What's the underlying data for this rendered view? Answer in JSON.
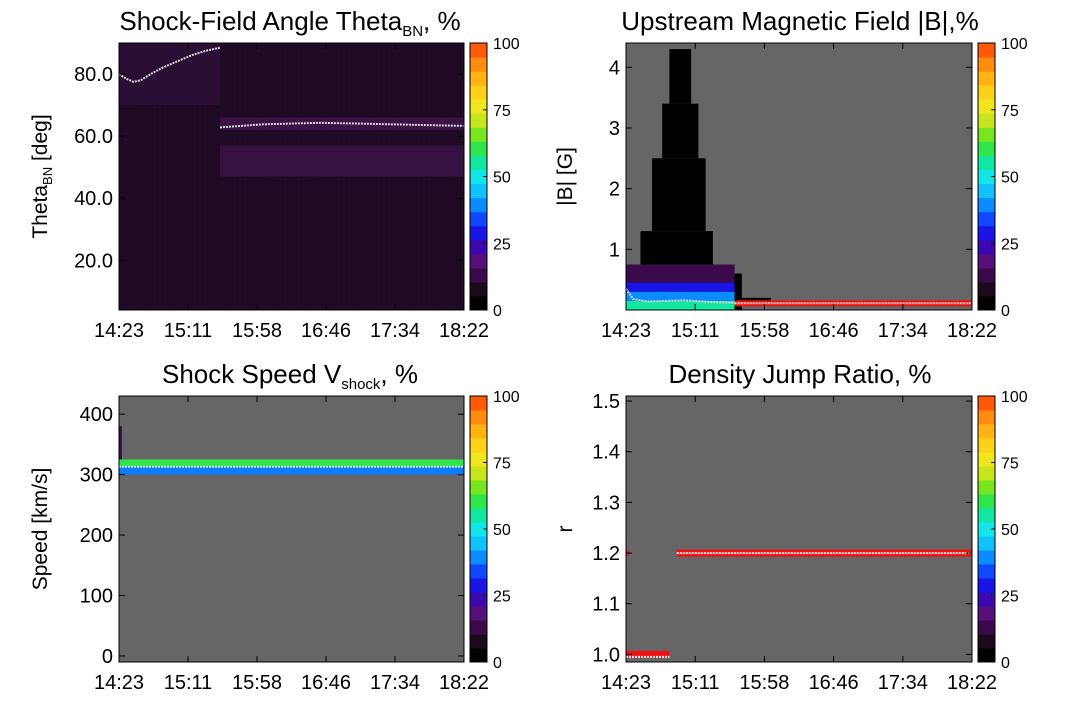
{
  "figure": {
    "colorbar_ticks": [
      "0",
      "25",
      "50",
      "75",
      "100"
    ],
    "colorbar_colors": [
      "#000000",
      "#1c0a1c",
      "#3a0a4a",
      "#55107a",
      "#3a0ab0",
      "#1a14e6",
      "#1048ff",
      "#0a8cff",
      "#12c2ff",
      "#12e6e6",
      "#12e6a0",
      "#2ee64a",
      "#78e61e",
      "#c8e61e",
      "#f0e61e",
      "#ffd21a",
      "#ffb414",
      "#ff8c10",
      "#ff5a0a"
    ],
    "background_color": "#666666",
    "time_ticks": [
      "14:23",
      "15:11",
      "15:58",
      "16:46",
      "17:34",
      "18:22"
    ]
  },
  "chart_data": [
    {
      "type": "heatmap",
      "title_main": "Shock-Field Angle Theta",
      "title_sub": "BN",
      "title_suffix": ", %",
      "ylabel_main": "Theta",
      "ylabel_sub": "BN",
      "ylabel_suffix": " [deg]",
      "x_ticks": [
        "14:23",
        "15:11",
        "15:58",
        "16:46",
        "17:34",
        "18:22"
      ],
      "y_ticks": [
        {
          "value": 20,
          "label": "20.0"
        },
        {
          "value": 40,
          "label": "40.0"
        },
        {
          "value": 60,
          "label": "60.0"
        },
        {
          "value": 80,
          "label": "80.0"
        }
      ],
      "ylim": [
        4,
        90
      ],
      "x_range_minutes": [
        0,
        239
      ],
      "background_color": "#1e0a24",
      "bands": [
        {
          "t0": 70,
          "t1": 239,
          "y0": 47,
          "y1": 57,
          "color": "#35113f"
        },
        {
          "t0": 70,
          "t1": 239,
          "y0": 62,
          "y1": 66,
          "color": "#3a1246"
        },
        {
          "t0": 0,
          "t1": 70,
          "y0": 70,
          "y1": 90,
          "color": "#2a0e34"
        }
      ],
      "median_lines": [
        {
          "points": [
            [
              0,
              80
            ],
            [
              5,
              78.5
            ],
            [
              10,
              77.5
            ],
            [
              15,
              78
            ],
            [
              22,
              80
            ],
            [
              30,
              82
            ],
            [
              40,
              84
            ],
            [
              50,
              86
            ],
            [
              60,
              87.5
            ],
            [
              70,
              88.5
            ]
          ],
          "color": "#d8d8d8"
        },
        {
          "points": [
            [
              70,
              62.8
            ],
            [
              100,
              63.8
            ],
            [
              140,
              64.3
            ],
            [
              170,
              64
            ],
            [
              210,
              63.6
            ],
            [
              239,
              63.3
            ]
          ],
          "color": "#d8d8d8"
        }
      ]
    },
    {
      "type": "heatmap",
      "title_main": "Upstream Magnetic Field |B|,%",
      "title_sub": "",
      "title_suffix": "",
      "ylabel_main": "|B| [G]",
      "ylabel_sub": "",
      "ylabel_suffix": "",
      "x_ticks": [
        "14:23",
        "15:11",
        "15:58",
        "16:46",
        "17:34",
        "18:22"
      ],
      "y_ticks": [
        {
          "value": 1,
          "label": "1"
        },
        {
          "value": 2,
          "label": "2"
        },
        {
          "value": 3,
          "label": "3"
        },
        {
          "value": 4,
          "label": "4"
        }
      ],
      "ylim": [
        0,
        4.4
      ],
      "x_range_minutes": [
        0,
        239
      ],
      "background_color": "#666666",
      "bands": [
        {
          "t0": 0,
          "t1": 80,
          "y0": 0,
          "y1": 0.6,
          "color": "#000000"
        },
        {
          "t0": 10,
          "t1": 60,
          "y0": 0.6,
          "y1": 1.3,
          "color": "#000000"
        },
        {
          "t0": 18,
          "t1": 55,
          "y0": 1.3,
          "y1": 2.5,
          "color": "#000000"
        },
        {
          "t0": 25,
          "t1": 50,
          "y0": 2.5,
          "y1": 3.4,
          "color": "#000000"
        },
        {
          "t0": 30,
          "t1": 45,
          "y0": 3.4,
          "y1": 4.3,
          "color": "#000000"
        },
        {
          "t0": 80,
          "t1": 100,
          "y0": 0.1,
          "y1": 0.2,
          "color": "#000000"
        },
        {
          "t0": 0,
          "t1": 75,
          "y0": 0.45,
          "y1": 0.75,
          "color": "#3a0a4a"
        },
        {
          "t0": 0,
          "t1": 75,
          "y0": 0.3,
          "y1": 0.45,
          "color": "#1a14e6"
        },
        {
          "t0": 0,
          "t1": 75,
          "y0": 0.15,
          "y1": 0.3,
          "color": "#0a8cff"
        },
        {
          "t0": 0,
          "t1": 75,
          "y0": 0.0,
          "y1": 0.15,
          "color": "#12e6a0"
        },
        {
          "t0": 75,
          "t1": 239,
          "y0": 0.06,
          "y1": 0.16,
          "color": "#ee1111"
        }
      ],
      "median_lines": [
        {
          "points": [
            [
              0,
              0.35
            ],
            [
              5,
              0.18
            ],
            [
              15,
              0.14
            ],
            [
              40,
              0.16
            ],
            [
              60,
              0.13
            ],
            [
              75,
              0.12
            ]
          ],
          "color": "#d8d8d8"
        },
        {
          "points": [
            [
              75,
              0.11
            ],
            [
              239,
              0.11
            ]
          ],
          "color": "#d8d8d8"
        }
      ]
    },
    {
      "type": "heatmap",
      "title_main": "Shock Speed V",
      "title_sub": "shock",
      "title_suffix": ", %",
      "ylabel_main": "Speed [km/s]",
      "ylabel_sub": "",
      "ylabel_suffix": "",
      "x_ticks": [
        "14:23",
        "15:11",
        "15:58",
        "16:46",
        "17:34",
        "18:22"
      ],
      "y_ticks": [
        {
          "value": 0,
          "label": "0"
        },
        {
          "value": 100,
          "label": "100"
        },
        {
          "value": 200,
          "label": "200"
        },
        {
          "value": 300,
          "label": "300"
        },
        {
          "value": 400,
          "label": "400"
        }
      ],
      "ylim": [
        -10,
        430
      ],
      "x_range_minutes": [
        0,
        239
      ],
      "background_color": "#666666",
      "bands": [
        {
          "t0": 0,
          "t1": 239,
          "y0": 313,
          "y1": 325,
          "color": "#2ee64a"
        },
        {
          "t0": 0,
          "t1": 239,
          "y0": 300,
          "y1": 313,
          "color": "#0a7cff"
        },
        {
          "t0": 0,
          "t1": 2,
          "y0": 325,
          "y1": 380,
          "color": "#3a0a4a"
        }
      ],
      "median_lines": [
        {
          "points": [
            [
              0,
              313
            ],
            [
              239,
              313
            ]
          ],
          "color": "#d8d8d8"
        }
      ]
    },
    {
      "type": "heatmap",
      "title_main": "Density Jump Ratio, %",
      "title_sub": "",
      "title_suffix": "",
      "ylabel_main": "r",
      "ylabel_sub": "",
      "ylabel_suffix": "",
      "x_ticks": [
        "14:23",
        "15:11",
        "15:58",
        "16:46",
        "17:34",
        "18:22"
      ],
      "y_ticks": [
        {
          "value": 1.0,
          "label": "1.0"
        },
        {
          "value": 1.1,
          "label": "1.1"
        },
        {
          "value": 1.2,
          "label": "1.2"
        },
        {
          "value": 1.3,
          "label": "1.3"
        },
        {
          "value": 1.4,
          "label": "1.4"
        },
        {
          "value": 1.5,
          "label": "1.5"
        }
      ],
      "ylim": [
        0.985,
        1.51
      ],
      "x_range_minutes": [
        0,
        239
      ],
      "background_color": "#666666",
      "bands": [
        {
          "t0": 0,
          "t1": 30,
          "y0": 0.993,
          "y1": 1.007,
          "color": "#ee1111"
        },
        {
          "t0": 35,
          "t1": 239,
          "y0": 1.193,
          "y1": 1.207,
          "color": "#ee1111"
        },
        {
          "t0": 0,
          "t1": 2,
          "y0": 1.195,
          "y1": 1.205,
          "color": "#ee1111"
        }
      ],
      "median_lines": [
        {
          "points": [
            [
              0,
              0.995
            ],
            [
              30,
              0.995
            ]
          ],
          "color": "#f0f0f0"
        },
        {
          "points": [
            [
              35,
              1.2
            ],
            [
              239,
              1.2
            ]
          ],
          "color": "#f0f0f0"
        }
      ]
    }
  ]
}
